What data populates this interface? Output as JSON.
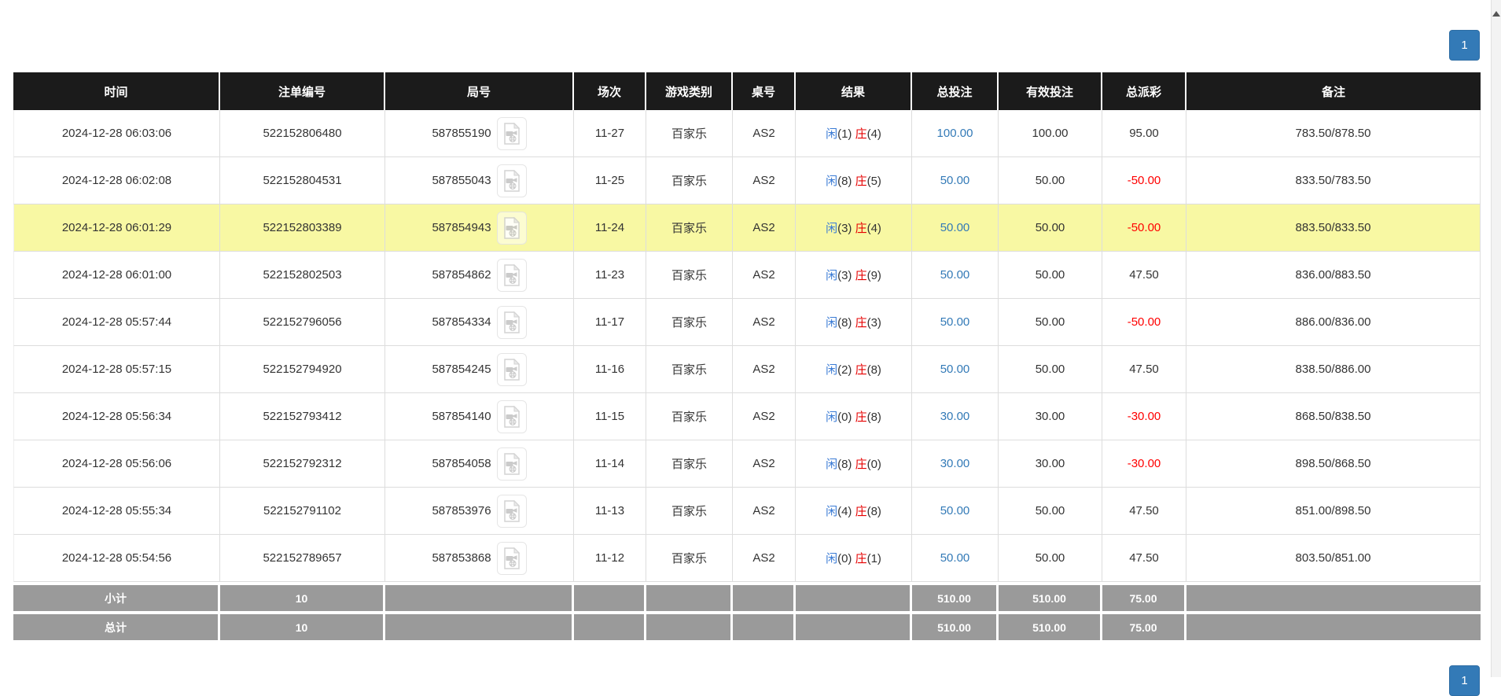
{
  "pagination": {
    "current_page": "1"
  },
  "icons": {
    "round_video": "video-file-icon",
    "scroll_up": "scroll-up-arrow-icon"
  },
  "colors": {
    "header_bg": "#1b1b1b",
    "highlight_row": "#f8f8a3",
    "footer_bg": "#9a9a9a",
    "link_blue": "#337ab7",
    "player_blue": "#3a7bd5",
    "banker_red": "#e60000",
    "negative_red": "#ff0000",
    "pagination_blue": "#337ab7"
  },
  "table": {
    "headers": [
      "时间",
      "注单编号",
      "局号",
      "场次",
      "游戏类别",
      "桌号",
      "结果",
      "总投注",
      "有效投注",
      "总派彩",
      "备注"
    ],
    "rows": [
      {
        "time": "2024-12-28 06:03:06",
        "bet_id": "522152806480",
        "round_id": "587855190",
        "session": "11-27",
        "game": "百家乐",
        "table_no": "AS2",
        "result": {
          "player_label": "闲",
          "player_value": "(1)",
          "banker_label": "庄",
          "banker_value": "(4)"
        },
        "total_bet": "100.00",
        "valid_bet": "100.00",
        "payout": "95.00",
        "payout_negative": false,
        "remark": "783.50/878.50",
        "highlight": false
      },
      {
        "time": "2024-12-28 06:02:08",
        "bet_id": "522152804531",
        "round_id": "587855043",
        "session": "11-25",
        "game": "百家乐",
        "table_no": "AS2",
        "result": {
          "player_label": "闲",
          "player_value": "(8)",
          "banker_label": "庄",
          "banker_value": "(5)"
        },
        "total_bet": "50.00",
        "valid_bet": "50.00",
        "payout": "-50.00",
        "payout_negative": true,
        "remark": "833.50/783.50",
        "highlight": false
      },
      {
        "time": "2024-12-28 06:01:29",
        "bet_id": "522152803389",
        "round_id": "587854943",
        "session": "11-24",
        "game": "百家乐",
        "table_no": "AS2",
        "result": {
          "player_label": "闲",
          "player_value": "(3)",
          "banker_label": "庄",
          "banker_value": "(4)"
        },
        "total_bet": "50.00",
        "valid_bet": "50.00",
        "payout": "-50.00",
        "payout_negative": true,
        "remark": "883.50/833.50",
        "highlight": true
      },
      {
        "time": "2024-12-28 06:01:00",
        "bet_id": "522152802503",
        "round_id": "587854862",
        "session": "11-23",
        "game": "百家乐",
        "table_no": "AS2",
        "result": {
          "player_label": "闲",
          "player_value": "(3)",
          "banker_label": "庄",
          "banker_value": "(9)"
        },
        "total_bet": "50.00",
        "valid_bet": "50.00",
        "payout": "47.50",
        "payout_negative": false,
        "remark": "836.00/883.50",
        "highlight": false
      },
      {
        "time": "2024-12-28 05:57:44",
        "bet_id": "522152796056",
        "round_id": "587854334",
        "session": "11-17",
        "game": "百家乐",
        "table_no": "AS2",
        "result": {
          "player_label": "闲",
          "player_value": "(8)",
          "banker_label": "庄",
          "banker_value": "(3)"
        },
        "total_bet": "50.00",
        "valid_bet": "50.00",
        "payout": "-50.00",
        "payout_negative": true,
        "remark": "886.00/836.00",
        "highlight": false
      },
      {
        "time": "2024-12-28 05:57:15",
        "bet_id": "522152794920",
        "round_id": "587854245",
        "session": "11-16",
        "game": "百家乐",
        "table_no": "AS2",
        "result": {
          "player_label": "闲",
          "player_value": "(2)",
          "banker_label": "庄",
          "banker_value": "(8)"
        },
        "total_bet": "50.00",
        "valid_bet": "50.00",
        "payout": "47.50",
        "payout_negative": false,
        "remark": "838.50/886.00",
        "highlight": false
      },
      {
        "time": "2024-12-28 05:56:34",
        "bet_id": "522152793412",
        "round_id": "587854140",
        "session": "11-15",
        "game": "百家乐",
        "table_no": "AS2",
        "result": {
          "player_label": "闲",
          "player_value": "(0)",
          "banker_label": "庄",
          "banker_value": "(8)"
        },
        "total_bet": "30.00",
        "valid_bet": "30.00",
        "payout": "-30.00",
        "payout_negative": true,
        "remark": "868.50/838.50",
        "highlight": false
      },
      {
        "time": "2024-12-28 05:56:06",
        "bet_id": "522152792312",
        "round_id": "587854058",
        "session": "11-14",
        "game": "百家乐",
        "table_no": "AS2",
        "result": {
          "player_label": "闲",
          "player_value": "(8)",
          "banker_label": "庄",
          "banker_value": "(0)"
        },
        "total_bet": "30.00",
        "valid_bet": "30.00",
        "payout": "-30.00",
        "payout_negative": true,
        "remark": "898.50/868.50",
        "highlight": false
      },
      {
        "time": "2024-12-28 05:55:34",
        "bet_id": "522152791102",
        "round_id": "587853976",
        "session": "11-13",
        "game": "百家乐",
        "table_no": "AS2",
        "result": {
          "player_label": "闲",
          "player_value": "(4)",
          "banker_label": "庄",
          "banker_value": "(8)"
        },
        "total_bet": "50.00",
        "valid_bet": "50.00",
        "payout": "47.50",
        "payout_negative": false,
        "remark": "851.00/898.50",
        "highlight": false
      },
      {
        "time": "2024-12-28 05:54:56",
        "bet_id": "522152789657",
        "round_id": "587853868",
        "session": "11-12",
        "game": "百家乐",
        "table_no": "AS2",
        "result": {
          "player_label": "闲",
          "player_value": "(0)",
          "banker_label": "庄",
          "banker_value": "(1)"
        },
        "total_bet": "50.00",
        "valid_bet": "50.00",
        "payout": "47.50",
        "payout_negative": false,
        "remark": "803.50/851.00",
        "highlight": false
      }
    ],
    "subtotal": {
      "label": "小计",
      "count": "10",
      "total_bet": "510.00",
      "valid_bet": "510.00",
      "payout": "75.00"
    },
    "total": {
      "label": "总计",
      "count": "10",
      "total_bet": "510.00",
      "valid_bet": "510.00",
      "payout": "75.00"
    }
  }
}
